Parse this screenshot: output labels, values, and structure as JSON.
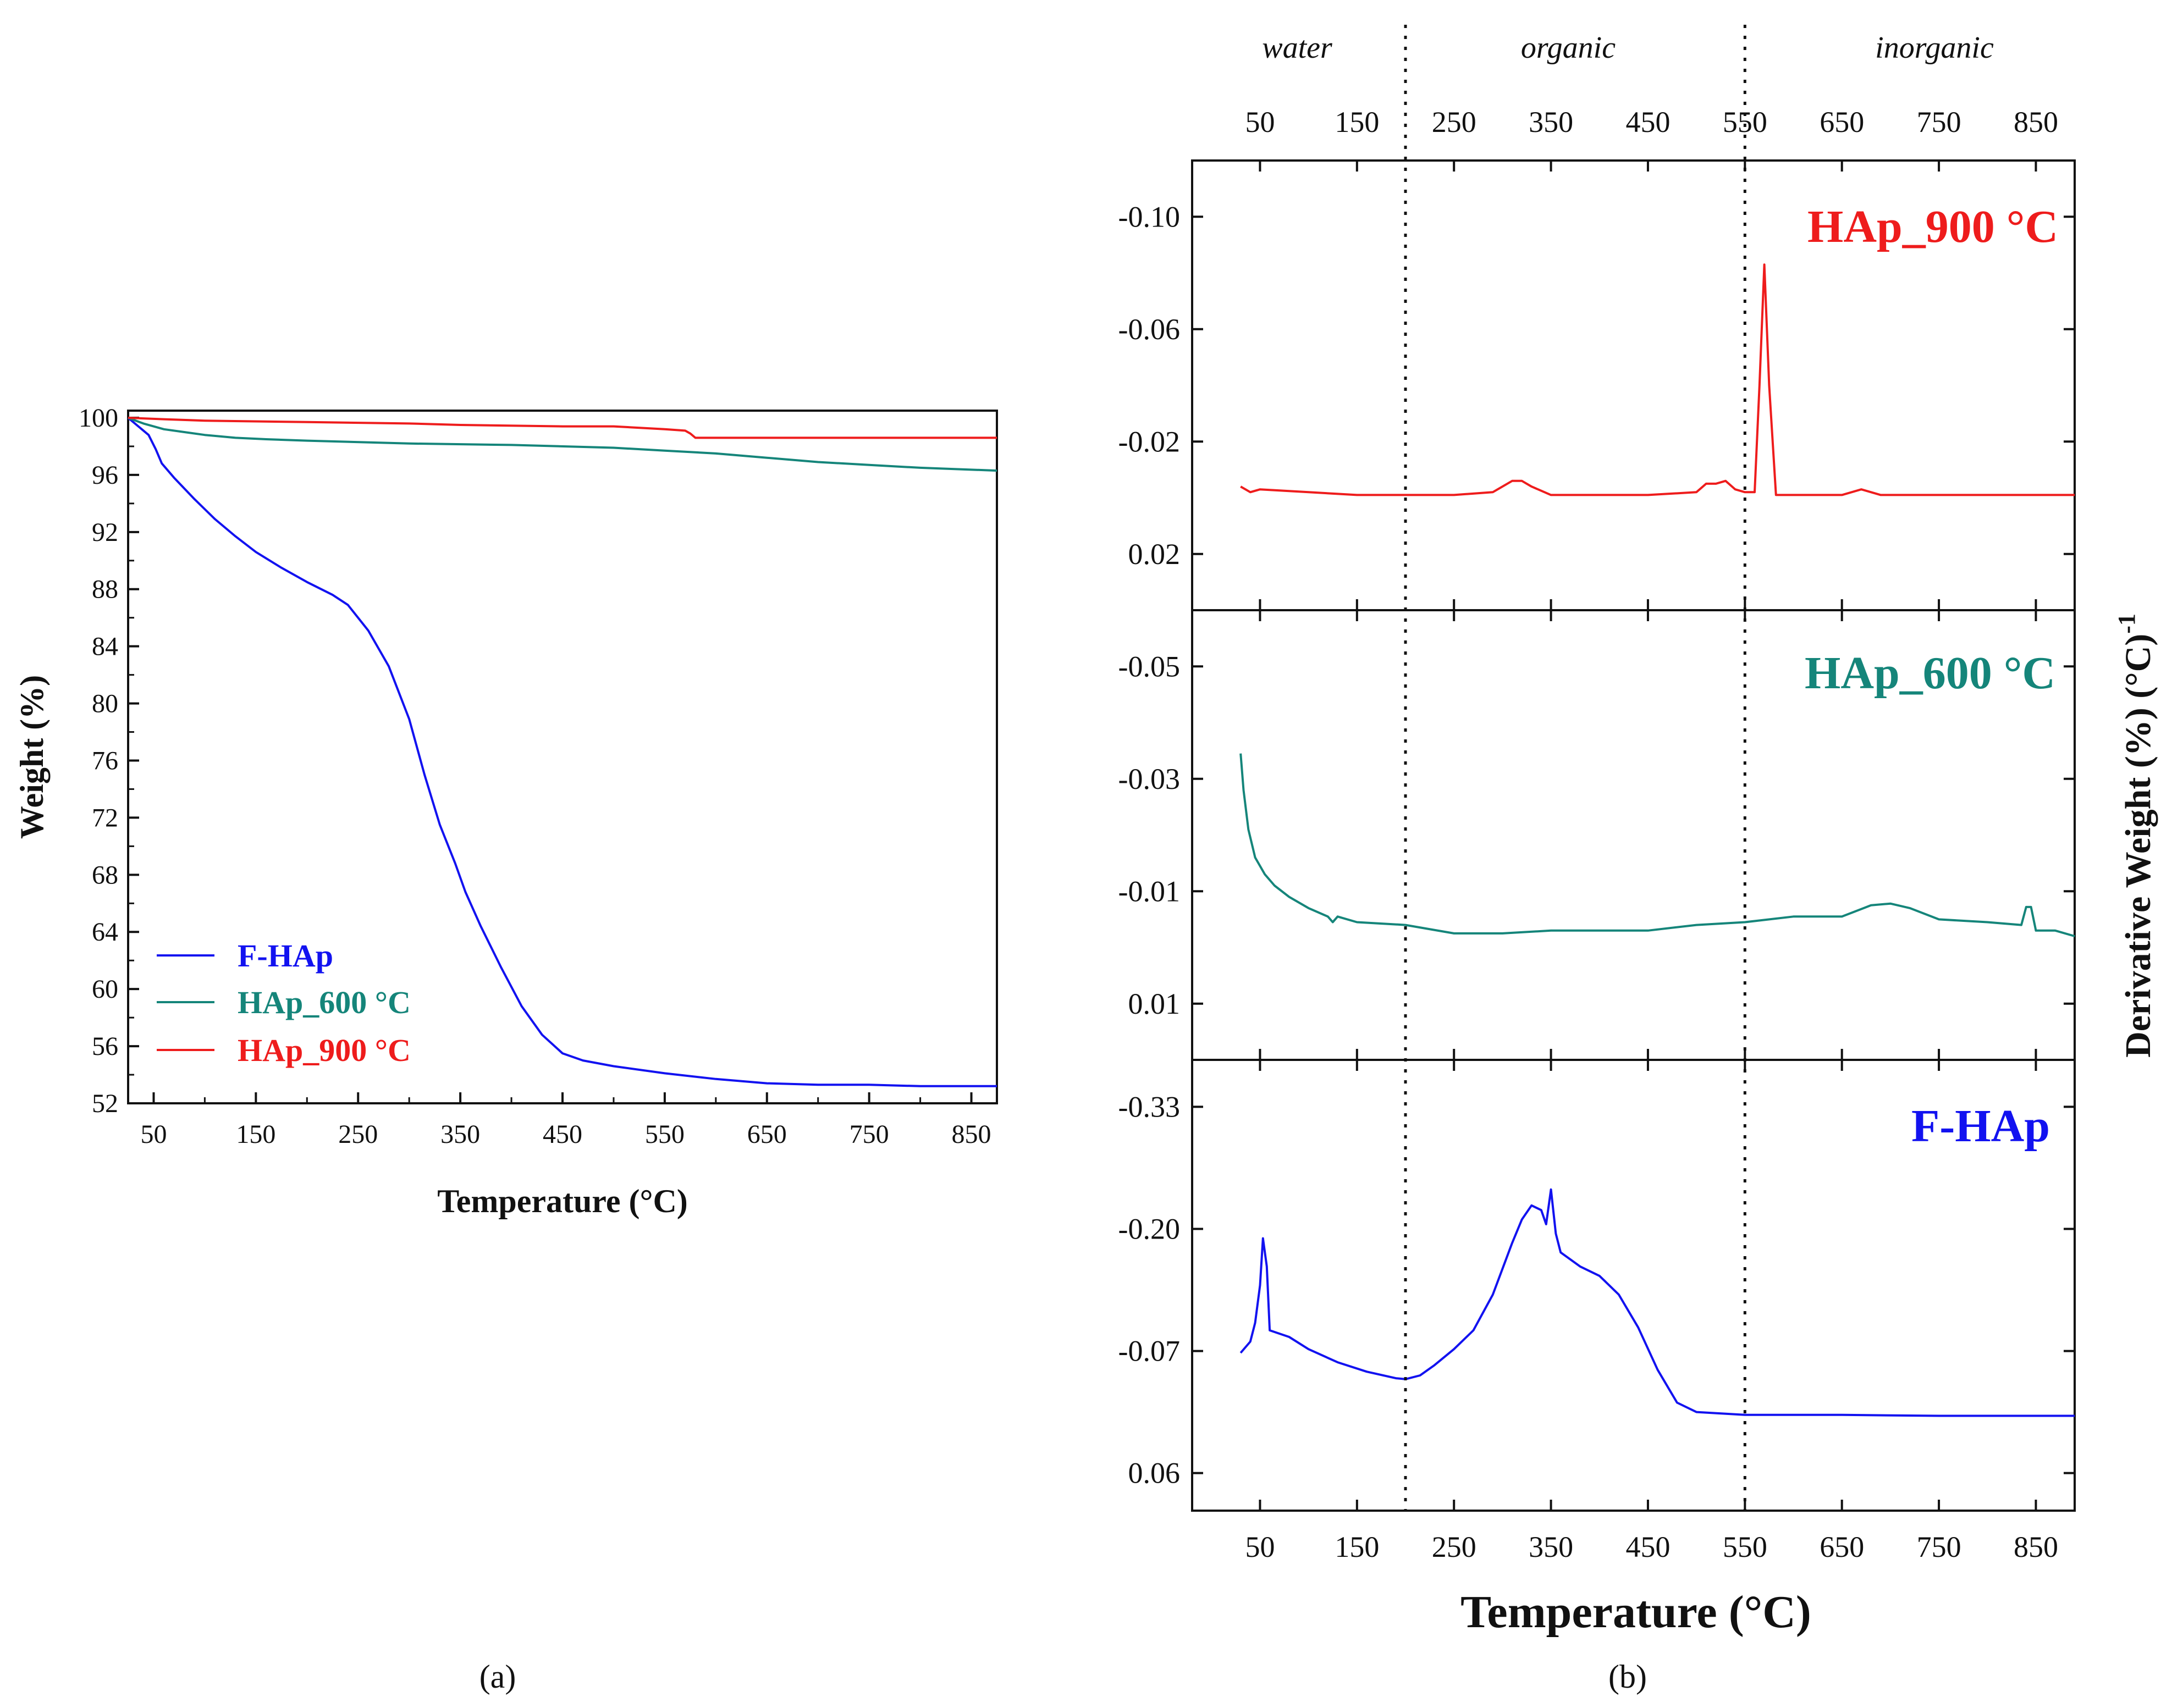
{
  "colors": {
    "fhap": "#1212f0",
    "hap600": "#15857a",
    "hap900": "#ee1c1c",
    "axis": "#111111"
  },
  "captions": {
    "a": "(a)",
    "b": "(b)"
  },
  "chart_data": [
    {
      "id": "a",
      "type": "line",
      "xlabel": "Temperature (°C)",
      "ylabel": "Weight (%)",
      "xlim": [
        25,
        875
      ],
      "ylim": [
        52,
        100.5
      ],
      "xticks": [
        50,
        150,
        250,
        350,
        450,
        550,
        650,
        750,
        850
      ],
      "yticks": [
        52,
        56,
        60,
        64,
        68,
        72,
        76,
        80,
        84,
        88,
        92,
        96,
        100
      ],
      "legend": {
        "position": "lower-left",
        "entries": [
          "F-HAp",
          "HAp_600 °C",
          "HAp_900 °C"
        ]
      },
      "series": [
        {
          "name": "F-HAp",
          "color_key": "fhap",
          "x": [
            25,
            35,
            45,
            52,
            58,
            70,
            90,
            110,
            130,
            150,
            175,
            200,
            225,
            240,
            260,
            280,
            300,
            315,
            330,
            345,
            355,
            370,
            390,
            410,
            430,
            450,
            470,
            500,
            550,
            600,
            650,
            700,
            750,
            800,
            875
          ],
          "y": [
            100,
            99.4,
            98.8,
            97.8,
            96.8,
            95.8,
            94.3,
            92.9,
            91.7,
            90.6,
            89.5,
            88.5,
            87.6,
            86.9,
            85.1,
            82.6,
            78.9,
            75.0,
            71.5,
            68.8,
            66.8,
            64.4,
            61.5,
            58.8,
            56.8,
            55.5,
            55.0,
            54.6,
            54.1,
            53.7,
            53.4,
            53.3,
            53.3,
            53.2,
            53.2
          ]
        },
        {
          "name": "HAp_600 °C",
          "color_key": "hap600",
          "x": [
            25,
            40,
            60,
            80,
            100,
            130,
            160,
            200,
            300,
            400,
            500,
            550,
            600,
            650,
            700,
            750,
            800,
            875
          ],
          "y": [
            100,
            99.6,
            99.2,
            99.0,
            98.8,
            98.6,
            98.5,
            98.4,
            98.2,
            98.1,
            97.9,
            97.7,
            97.5,
            97.2,
            96.9,
            96.7,
            96.5,
            96.3
          ]
        },
        {
          "name": "HAp_900 °C",
          "color_key": "hap900",
          "x": [
            25,
            60,
            100,
            200,
            300,
            350,
            450,
            500,
            550,
            570,
            575,
            580,
            650,
            750,
            875
          ],
          "y": [
            100,
            99.9,
            99.8,
            99.7,
            99.6,
            99.5,
            99.4,
            99.4,
            99.2,
            99.1,
            98.9,
            98.6,
            98.6,
            98.6,
            98.6
          ]
        }
      ]
    },
    {
      "id": "b",
      "type": "line",
      "xlabel": "Temperature (°C)",
      "ylabel": "Derivative Weight (%) (°C)",
      "ylabel_superscript": "-1",
      "xlim": [
        -20,
        890
      ],
      "xticks": [
        50,
        150,
        250,
        350,
        450,
        550,
        650,
        750,
        850
      ],
      "regions": [
        {
          "label": "water",
          "center": 100
        },
        {
          "label": "organic",
          "center": 375
        },
        {
          "label": "inorganic",
          "center": 720
        }
      ],
      "region_boundaries": [
        200,
        550
      ],
      "panels": [
        {
          "name": "HAp_900 °C",
          "color_key": "hap900",
          "ylim": [
            0.04,
            -0.12
          ],
          "inverted": true,
          "yticks": [
            -0.1,
            -0.06,
            -0.02,
            0.02
          ],
          "ytick_labels": [
            "-0.10",
            "-0.06",
            "-0.02",
            "0.02"
          ],
          "x": [
            30,
            40,
            50,
            100,
            150,
            200,
            250,
            290,
            310,
            320,
            330,
            350,
            400,
            450,
            500,
            510,
            520,
            530,
            540,
            550,
            560,
            565,
            570,
            575,
            582,
            590,
            650,
            670,
            690,
            720,
            800,
            850,
            890
          ],
          "y": [
            -0.004,
            -0.002,
            -0.003,
            -0.002,
            -0.001,
            -0.001,
            -0.001,
            -0.002,
            -0.006,
            -0.006,
            -0.004,
            -0.001,
            -0.001,
            -0.001,
            -0.002,
            -0.005,
            -0.005,
            -0.006,
            -0.003,
            -0.002,
            -0.002,
            -0.04,
            -0.083,
            -0.04,
            -0.001,
            -0.001,
            -0.001,
            -0.003,
            -0.001,
            -0.001,
            -0.001,
            -0.001,
            -0.001
          ]
        },
        {
          "name": "HAp_600 °C",
          "color_key": "hap600",
          "ylim": [
            0.02,
            -0.06
          ],
          "inverted": true,
          "yticks": [
            -0.05,
            -0.03,
            -0.01,
            0.01
          ],
          "ytick_labels": [
            "-0.05",
            "-0.03",
            "-0.01",
            "0.01"
          ],
          "x": [
            30,
            33,
            38,
            45,
            55,
            65,
            80,
            100,
            120,
            125,
            130,
            150,
            200,
            250,
            300,
            350,
            400,
            450,
            500,
            550,
            600,
            650,
            680,
            700,
            720,
            750,
            800,
            835,
            840,
            845,
            850,
            870,
            890
          ],
          "y": [
            -0.0345,
            -0.028,
            -0.021,
            -0.016,
            -0.013,
            -0.011,
            -0.009,
            -0.007,
            -0.0055,
            -0.0045,
            -0.0055,
            -0.0045,
            -0.004,
            -0.0025,
            -0.0025,
            -0.003,
            -0.003,
            -0.003,
            -0.004,
            -0.0045,
            -0.0055,
            -0.0055,
            -0.0075,
            -0.0078,
            -0.007,
            -0.005,
            -0.0045,
            -0.004,
            -0.0072,
            -0.0072,
            -0.003,
            -0.003,
            -0.002
          ]
        },
        {
          "name": "F-HAp",
          "color_key": "fhap",
          "ylim": [
            0.1,
            -0.38
          ],
          "inverted": true,
          "yticks": [
            -0.33,
            -0.2,
            -0.07,
            0.06
          ],
          "ytick_labels": [
            "-0.33",
            "-0.20",
            "-0.07",
            "0.06"
          ],
          "x": [
            30,
            40,
            45,
            50,
            53,
            57,
            60,
            80,
            100,
            130,
            160,
            190,
            200,
            215,
            230,
            250,
            270,
            290,
            310,
            320,
            330,
            340,
            345,
            350,
            355,
            360,
            380,
            400,
            420,
            440,
            460,
            480,
            500,
            550,
            650,
            750,
            890
          ],
          "y": [
            -0.068,
            -0.08,
            -0.1,
            -0.14,
            -0.19,
            -0.16,
            -0.092,
            -0.085,
            -0.072,
            -0.058,
            -0.048,
            -0.041,
            -0.04,
            -0.044,
            -0.055,
            -0.072,
            -0.092,
            -0.13,
            -0.185,
            -0.21,
            -0.225,
            -0.22,
            -0.205,
            -0.242,
            -0.195,
            -0.175,
            -0.16,
            -0.15,
            -0.13,
            -0.095,
            -0.05,
            -0.015,
            -0.005,
            -0.002,
            -0.002,
            -0.001,
            -0.001
          ]
        }
      ]
    }
  ]
}
